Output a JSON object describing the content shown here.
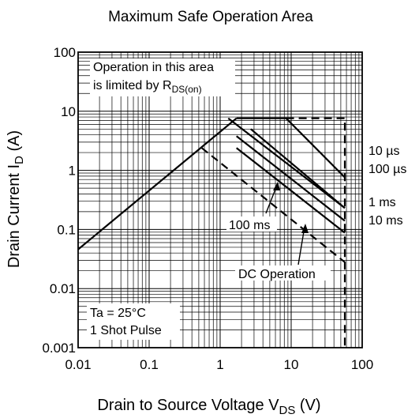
{
  "chart_data": {
    "type": "line",
    "title": "Maximum Safe Operation Area",
    "xlabel": {
      "main": "Drain to Source Voltage   V",
      "sub": "DS",
      "unit": "  (V)"
    },
    "ylabel": {
      "main": "Drain Current   I",
      "sub": "D",
      "unit": "  (A)"
    },
    "x_scale": "log",
    "y_scale": "log",
    "xlim": [
      0.01,
      100
    ],
    "ylim": [
      0.001,
      100
    ],
    "grid": true,
    "x_ticks": [
      {
        "value": 0.01,
        "label": "0.01"
      },
      {
        "value": 0.1,
        "label": "0.1"
      },
      {
        "value": 1,
        "label": "1"
      },
      {
        "value": 10,
        "label": "10"
      },
      {
        "value": 100,
        "label": "100"
      }
    ],
    "y_ticks": [
      {
        "value": 0.001,
        "label": "0.001"
      },
      {
        "value": 0.01,
        "label": "0.01"
      },
      {
        "value": 0.1,
        "label": "0.1"
      },
      {
        "value": 1,
        "label": "1"
      },
      {
        "value": 10,
        "label": "10"
      },
      {
        "value": 100,
        "label": "100"
      }
    ],
    "series": [
      {
        "name": "10 µs",
        "style": "solid",
        "points": [
          [
            1.7,
            7.6
          ],
          [
            8.5,
            7.6
          ],
          [
            57,
            0.76
          ]
        ]
      },
      {
        "name": "100 µs",
        "style": "solid",
        "points": [
          [
            2.7,
            5.0
          ],
          [
            57,
            0.23
          ]
        ]
      },
      {
        "name": "1 ms",
        "style": "solid",
        "points": [
          [
            1.7,
            3.8
          ],
          [
            57,
            0.14
          ]
        ]
      },
      {
        "name": "10 ms",
        "style": "solid",
        "points": [
          [
            1.7,
            2.4
          ],
          [
            57,
            0.088
          ]
        ]
      },
      {
        "name": "100 ms",
        "style": "solid",
        "points": [
          [
            1.3,
            7.6
          ],
          [
            57,
            0.23
          ]
        ]
      },
      {
        "name": "DC Operation",
        "style": "dashed",
        "points": [
          [
            0.55,
            2.4
          ],
          [
            57,
            0.028
          ]
        ]
      },
      {
        "name": "",
        "style": "dashed",
        "points": [
          [
            8.5,
            7.6
          ],
          [
            57,
            7.6
          ],
          [
            57,
            0.001
          ]
        ]
      }
    ],
    "ron_limit": {
      "style": "solid",
      "points": [
        [
          0.01,
          0.046
        ],
        [
          1.7,
          7.6
        ]
      ]
    },
    "annotations": {
      "ron_note": {
        "line1": "Operation in this area",
        "line2": "is limited by R",
        "sub": "DS(on)"
      },
      "conditions": {
        "line1": "Ta = 25°C",
        "line2": "1 Shot  Pulse"
      },
      "curve_labels": {
        "us10": "10 µs",
        "us100": "100 µs",
        "ms1": "1 ms",
        "ms10": "10 ms",
        "ms100": "100 ms",
        "dc": "DC Operation"
      }
    }
  }
}
